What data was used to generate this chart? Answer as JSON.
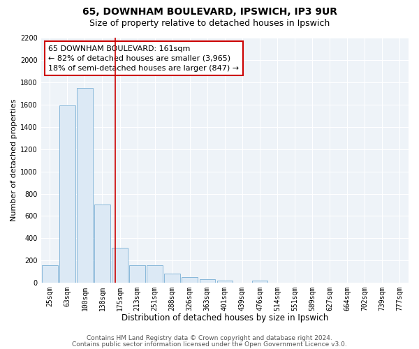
{
  "title": "65, DOWNHAM BOULEVARD, IPSWICH, IP3 9UR",
  "subtitle": "Size of property relative to detached houses in Ipswich",
  "xlabel": "Distribution of detached houses by size in Ipswich",
  "ylabel": "Number of detached properties",
  "bin_labels": [
    "25sqm",
    "63sqm",
    "100sqm",
    "138sqm",
    "175sqm",
    "213sqm",
    "251sqm",
    "288sqm",
    "326sqm",
    "363sqm",
    "401sqm",
    "439sqm",
    "476sqm",
    "514sqm",
    "551sqm",
    "589sqm",
    "627sqm",
    "664sqm",
    "702sqm",
    "739sqm",
    "777sqm"
  ],
  "bar_heights": [
    160,
    1590,
    1750,
    700,
    315,
    155,
    155,
    85,
    50,
    30,
    20,
    0,
    20,
    0,
    0,
    0,
    0,
    0,
    0,
    0,
    0
  ],
  "bar_color": "#dce9f5",
  "bar_edge_color": "#7ab0d5",
  "property_label": "65 DOWNHAM BOULEVARD: 161sqm",
  "annotation_line1": "← 82% of detached houses are smaller (3,965)",
  "annotation_line2": "18% of semi-detached houses are larger (847) →",
  "vline_color": "#cc0000",
  "vline_x": 3.75,
  "ylim": [
    0,
    2200
  ],
  "yticks": [
    0,
    200,
    400,
    600,
    800,
    1000,
    1200,
    1400,
    1600,
    1800,
    2000,
    2200
  ],
  "footer1": "Contains HM Land Registry data © Crown copyright and database right 2024.",
  "footer2": "Contains public sector information licensed under the Open Government Licence v3.0.",
  "background_color": "#ffffff",
  "plot_background_color": "#eef3f8",
  "grid_color": "#ffffff",
  "title_fontsize": 10,
  "subtitle_fontsize": 9,
  "xlabel_fontsize": 8.5,
  "ylabel_fontsize": 8,
  "tick_fontsize": 7,
  "annotation_fontsize": 8,
  "footer_fontsize": 6.5
}
